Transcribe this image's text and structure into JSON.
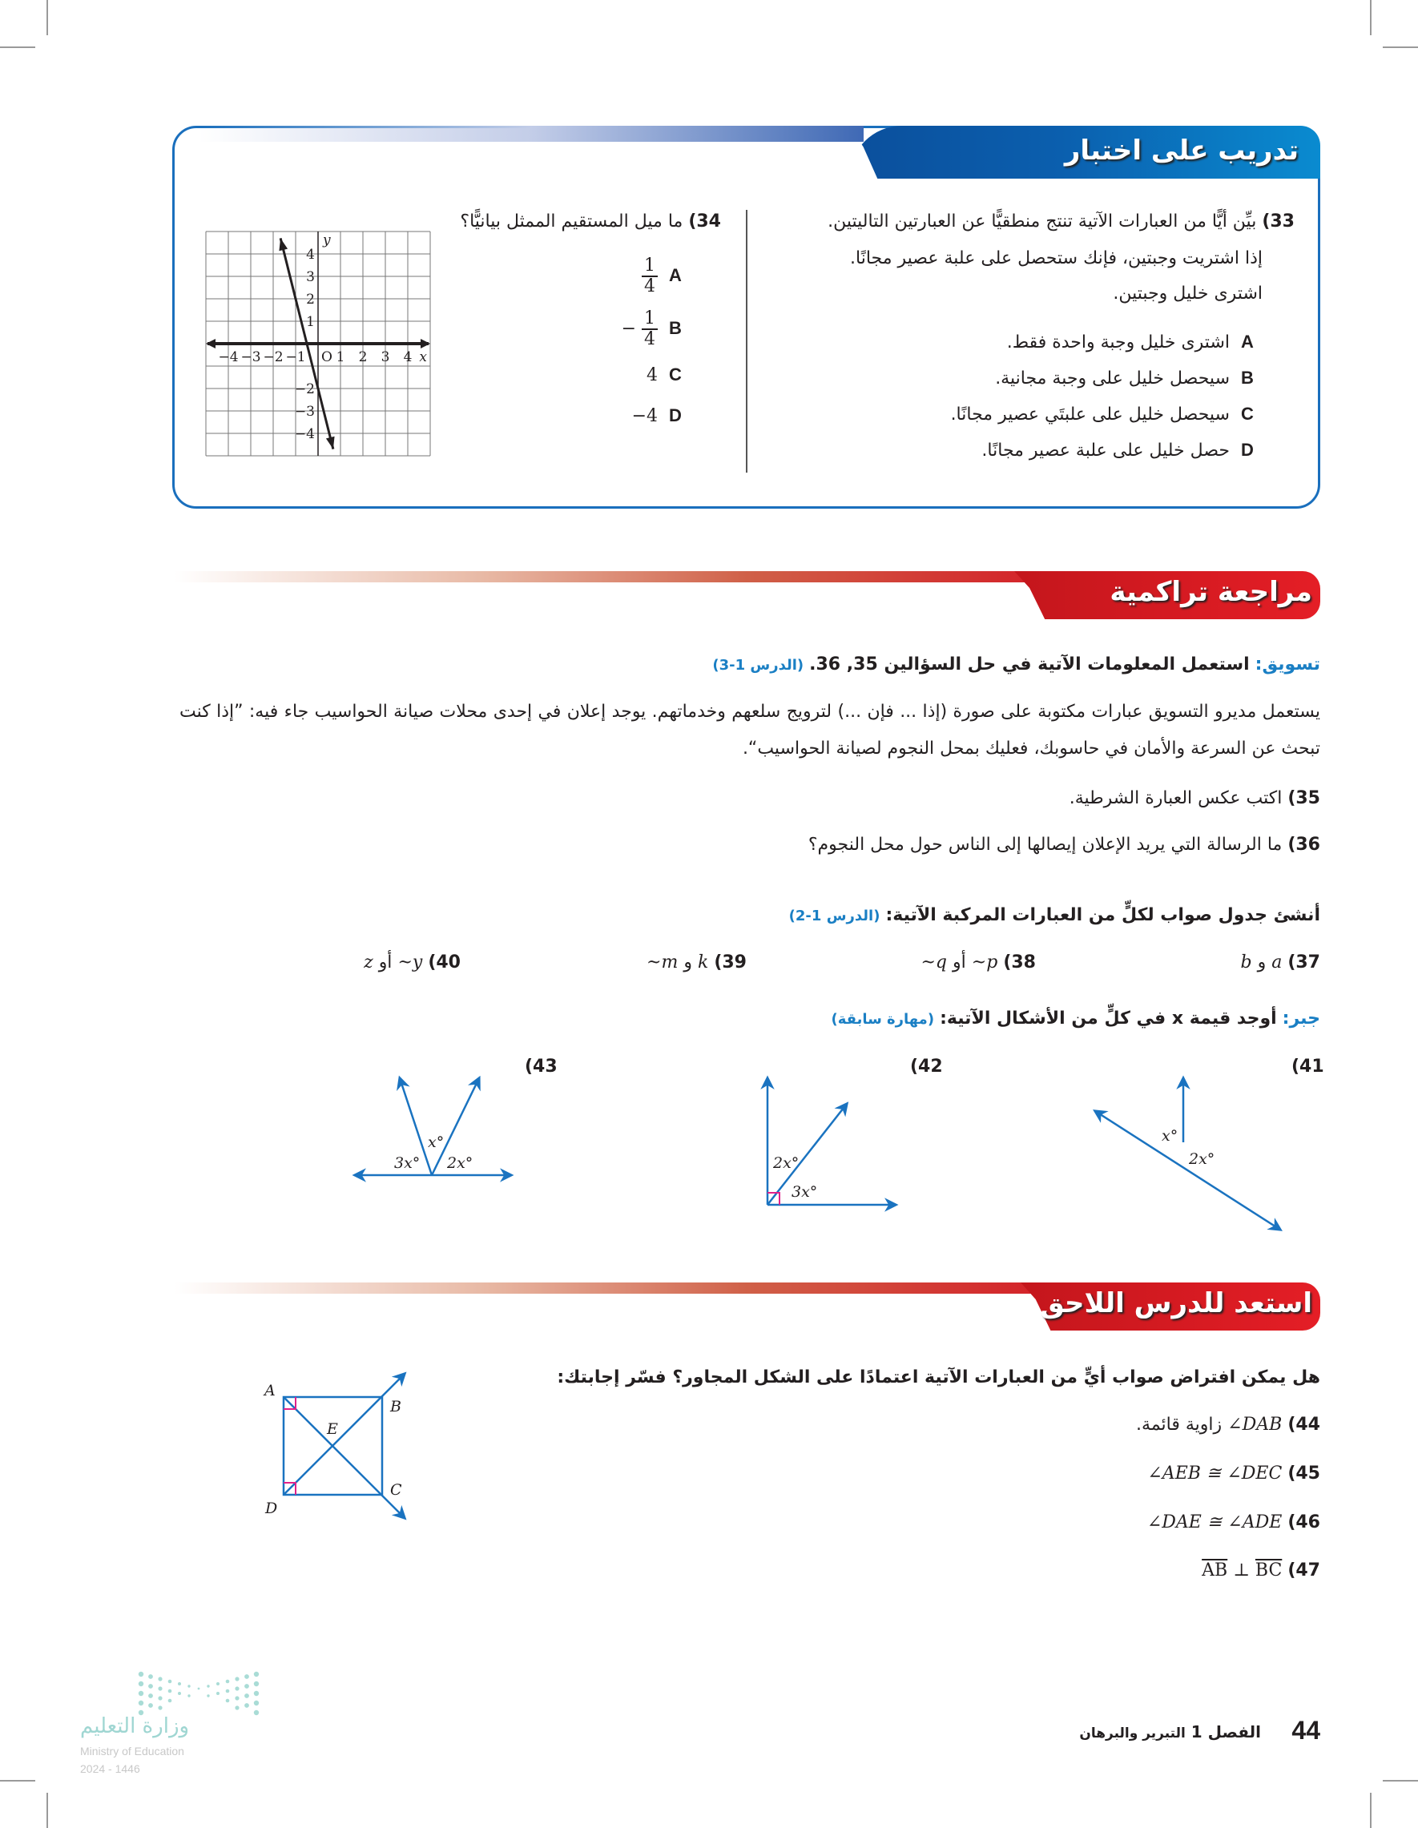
{
  "test_practice": {
    "title": "تدريب على اختبار",
    "q33": {
      "number": "33)",
      "prompt": "بيِّن أيًّا من العبارات الآتية تنتج منطقيًّا عن العبارتين التاليتين.",
      "statement1": "إذا اشتريت وجبتين، فإنك ستحصل على علبة عصير مجانًا.",
      "statement2": "اشترى خليل وجبتين.",
      "options": [
        {
          "letter": "A",
          "text": "اشترى خليل وجبة واحدة فقط."
        },
        {
          "letter": "B",
          "text": "سيحصل خليل على وجبة مجانية."
        },
        {
          "letter": "C",
          "text": "سيحصل خليل على علبتَي عصير مجانًا."
        },
        {
          "letter": "D",
          "text": "حصل خليل على علبة عصير مجانًا."
        }
      ]
    },
    "q34": {
      "number": "34)",
      "prompt": "ما ميل المستقيم الممثل بيانيًّا؟",
      "options": [
        {
          "letter": "A",
          "sign": "",
          "numerator": "1",
          "denominator": "4"
        },
        {
          "letter": "B",
          "sign": "−",
          "numerator": "1",
          "denominator": "4"
        },
        {
          "letter": "C",
          "value": "4"
        },
        {
          "letter": "D",
          "value": "−4"
        }
      ],
      "graph": {
        "x_label": "x",
        "y_label": "y",
        "origin_label": "O",
        "x_tick_labels": [
          "−4",
          "−3",
          "−2",
          "−1",
          "1",
          "2",
          "3",
          "4"
        ],
        "y_tick_labels": [
          "4",
          "3",
          "2",
          "1",
          "−2",
          "−3",
          "−4"
        ],
        "x_range": [
          -5,
          5
        ],
        "y_range": [
          -5,
          5
        ],
        "line": {
          "slope": -4,
          "intercept": -2
        }
      }
    }
  },
  "cumulative_review": {
    "title": "مراجعة تراكمية",
    "marketing": {
      "label": "تسويق:",
      "text": "استعمل المعلومات الآتية في حل السؤالين 35, 36.",
      "lesson": "(الدرس 1-3)",
      "paragraph": "يستعمل مديرو التسويق عبارات مكتوبة على صورة (إذا ... فإن ...) لترويج سلعهم وخدماتهم. يوجد إعلان في إحدى محلات صيانة الحواسيب جاء فيه: ”إذا كنت تبحث عن السرعة والأمان في حاسوبك، فعليك بمحل النجوم لصيانة الحواسيب“."
    },
    "q35": {
      "number": "35)",
      "text": "اكتب عكس العبارة الشرطية."
    },
    "q36": {
      "number": "36)",
      "text": "ما الرسالة التي يريد الإعلان إيصالها إلى الناس حول محل النجوم؟"
    },
    "truth_tables": {
      "text": "أنشئ جدول صواب لكلٍّ من العبارات المركبة الآتية:",
      "lesson": "(الدرس 1-2)",
      "items": [
        {
          "number": "37)",
          "left": "a",
          "connector": "و",
          "right": "b"
        },
        {
          "number": "38)",
          "left": "~p",
          "connector": "أو",
          "right": "~q"
        },
        {
          "number": "39)",
          "left": "k",
          "connector": "و",
          "right": "~m"
        },
        {
          "number": "40)",
          "left": "~y",
          "connector": "أو",
          "right": "z"
        }
      ]
    },
    "algebra": {
      "label": "جبر:",
      "text": "أوجد قيمة x في كلٍّ من الأشكال الآتية:",
      "lesson": "(مهارة سابقة)",
      "figures": [
        {
          "number": "(41",
          "labels": [
            "x°",
            "2x°"
          ]
        },
        {
          "number": "(42",
          "labels": [
            "2x°",
            "3x°"
          ]
        },
        {
          "number": "(43",
          "labels": [
            "3x°",
            "x°",
            "2x°"
          ]
        }
      ]
    }
  },
  "prepare_next": {
    "title": "استعد للدرس اللاحق",
    "question": "هل يمكن افتراض صواب أيٍّ من العبارات الآتية اعتمادًا على الشكل المجاور؟ فسّر إجابتك:",
    "items": [
      {
        "number": "44)",
        "math": "∠DAB",
        "text": "زاوية قائمة."
      },
      {
        "number": "45)",
        "math": "∠AEB ≅ ∠DEC",
        "text": ""
      },
      {
        "number": "46)",
        "math": "∠DAE ≅ ∠ADE",
        "text": ""
      },
      {
        "number": "47)",
        "seg1": "AB",
        "op": " ⊥ ",
        "seg2": "BC"
      }
    ],
    "figure_labels": {
      "A": "A",
      "B": "B",
      "C": "C",
      "D": "D",
      "E": "E"
    }
  },
  "footer": {
    "page_number": "44",
    "chapter": "الفصل 1",
    "chapter_title": "التبرير والبرهان",
    "ministry_ar": "وزارة التعليم",
    "ministry_en": "Ministry of Education",
    "year": "2024 - 1446"
  },
  "colors": {
    "test_blue": "#1a6fbd",
    "review_red": "#d41f27",
    "lesson_blue": "#1a7fc4",
    "figure_blue": "#1a73c0",
    "right_angle_pink": "#e0218a"
  }
}
